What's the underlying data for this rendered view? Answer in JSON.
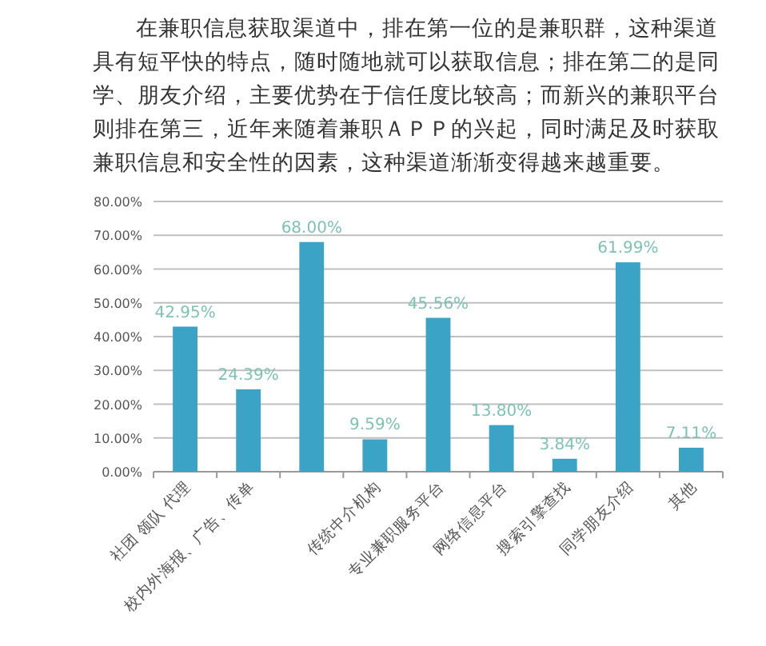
{
  "chart_data": {
    "type": "bar",
    "title": "在兼职信息获取渠道中，排在第一位的是兼职群，这种渠道具有短平快的特点，随时随地就可以获取信息；排在第二的是同学、朋友介绍，主要优势在于信任度比较高；而新兴的兼职平台则排在第三，近年来随着兼职ＡＰＰ的兴起，同时满足及时获取兼职信息和安全性的因素，这种渠道渐渐变得越来越重要。",
    "categories": [
      "社团 领队 代理",
      "校内外海报、广告、传单",
      null,
      "传统中介机构",
      "专业兼职服务平台",
      "网络信息平台",
      "搜索引擎查找",
      "同学朋友介绍",
      "其他"
    ],
    "values": [
      42.95,
      24.39,
      68.0,
      9.59,
      45.56,
      13.8,
      3.84,
      61.99,
      7.11
    ],
    "value_labels": [
      "42.95%",
      "24.39%",
      "68.00%",
      "9.59%",
      "45.56%",
      "13.80%",
      "3.84%",
      "61.99%",
      "7.11%"
    ],
    "color": "#3ba3c6",
    "ylim": [
      0,
      80
    ],
    "yticks": [
      {
        "value": 0,
        "label": "0.00%"
      },
      {
        "value": 10,
        "label": "10.00%"
      },
      {
        "value": 20,
        "label": "20.00%"
      },
      {
        "value": 30,
        "label": "30.00%"
      },
      {
        "value": 40,
        "label": "40.00%"
      },
      {
        "value": 50,
        "label": "50.00%"
      },
      {
        "value": 60,
        "label": "60.00%"
      },
      {
        "value": 70,
        "label": "70.00%"
      },
      {
        "value": 80,
        "label": "80.00%"
      }
    ],
    "grid": "y"
  }
}
